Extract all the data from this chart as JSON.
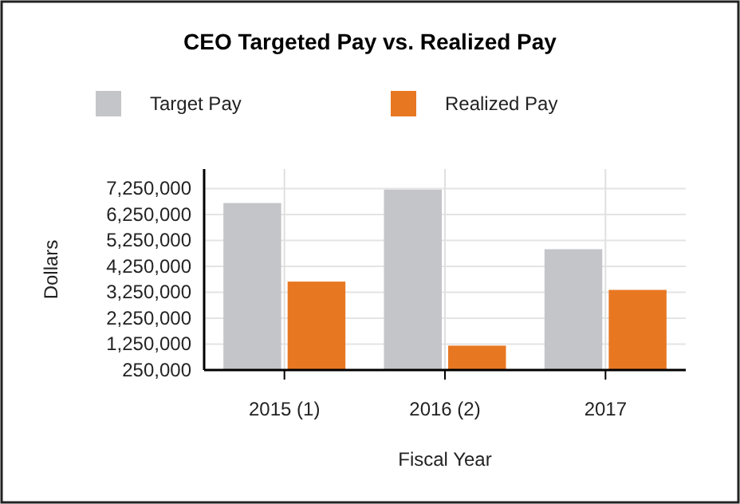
{
  "chart_data": {
    "type": "bar",
    "title": "CEO Targeted Pay vs. Realized Pay",
    "xlabel": "Fiscal Year",
    "ylabel": "Dollars",
    "categories": [
      "2015 (1)",
      "2016 (2)",
      "2017"
    ],
    "series": [
      {
        "name": "Target Pay",
        "color": "#c4c5c9",
        "values": [
          6690000,
          7210000,
          4910000
        ]
      },
      {
        "name": "Realized Pay",
        "color": "#e87722",
        "values": [
          3660000,
          1190000,
          3340000
        ]
      }
    ],
    "ylim": [
      250000,
      8000000
    ],
    "yticks": [
      {
        "value": 250000,
        "label": "250,000"
      },
      {
        "value": 1250000,
        "label": "1,250,000"
      },
      {
        "value": 2250000,
        "label": "2,250,000"
      },
      {
        "value": 3250000,
        "label": "3,250,000"
      },
      {
        "value": 4250000,
        "label": "4,250,000"
      },
      {
        "value": 5250000,
        "label": "5,250,000"
      },
      {
        "value": 6250000,
        "label": "6,250,000"
      },
      {
        "value": 7250000,
        "label": "7,250,000"
      }
    ],
    "grid": true,
    "legend": "top"
  }
}
